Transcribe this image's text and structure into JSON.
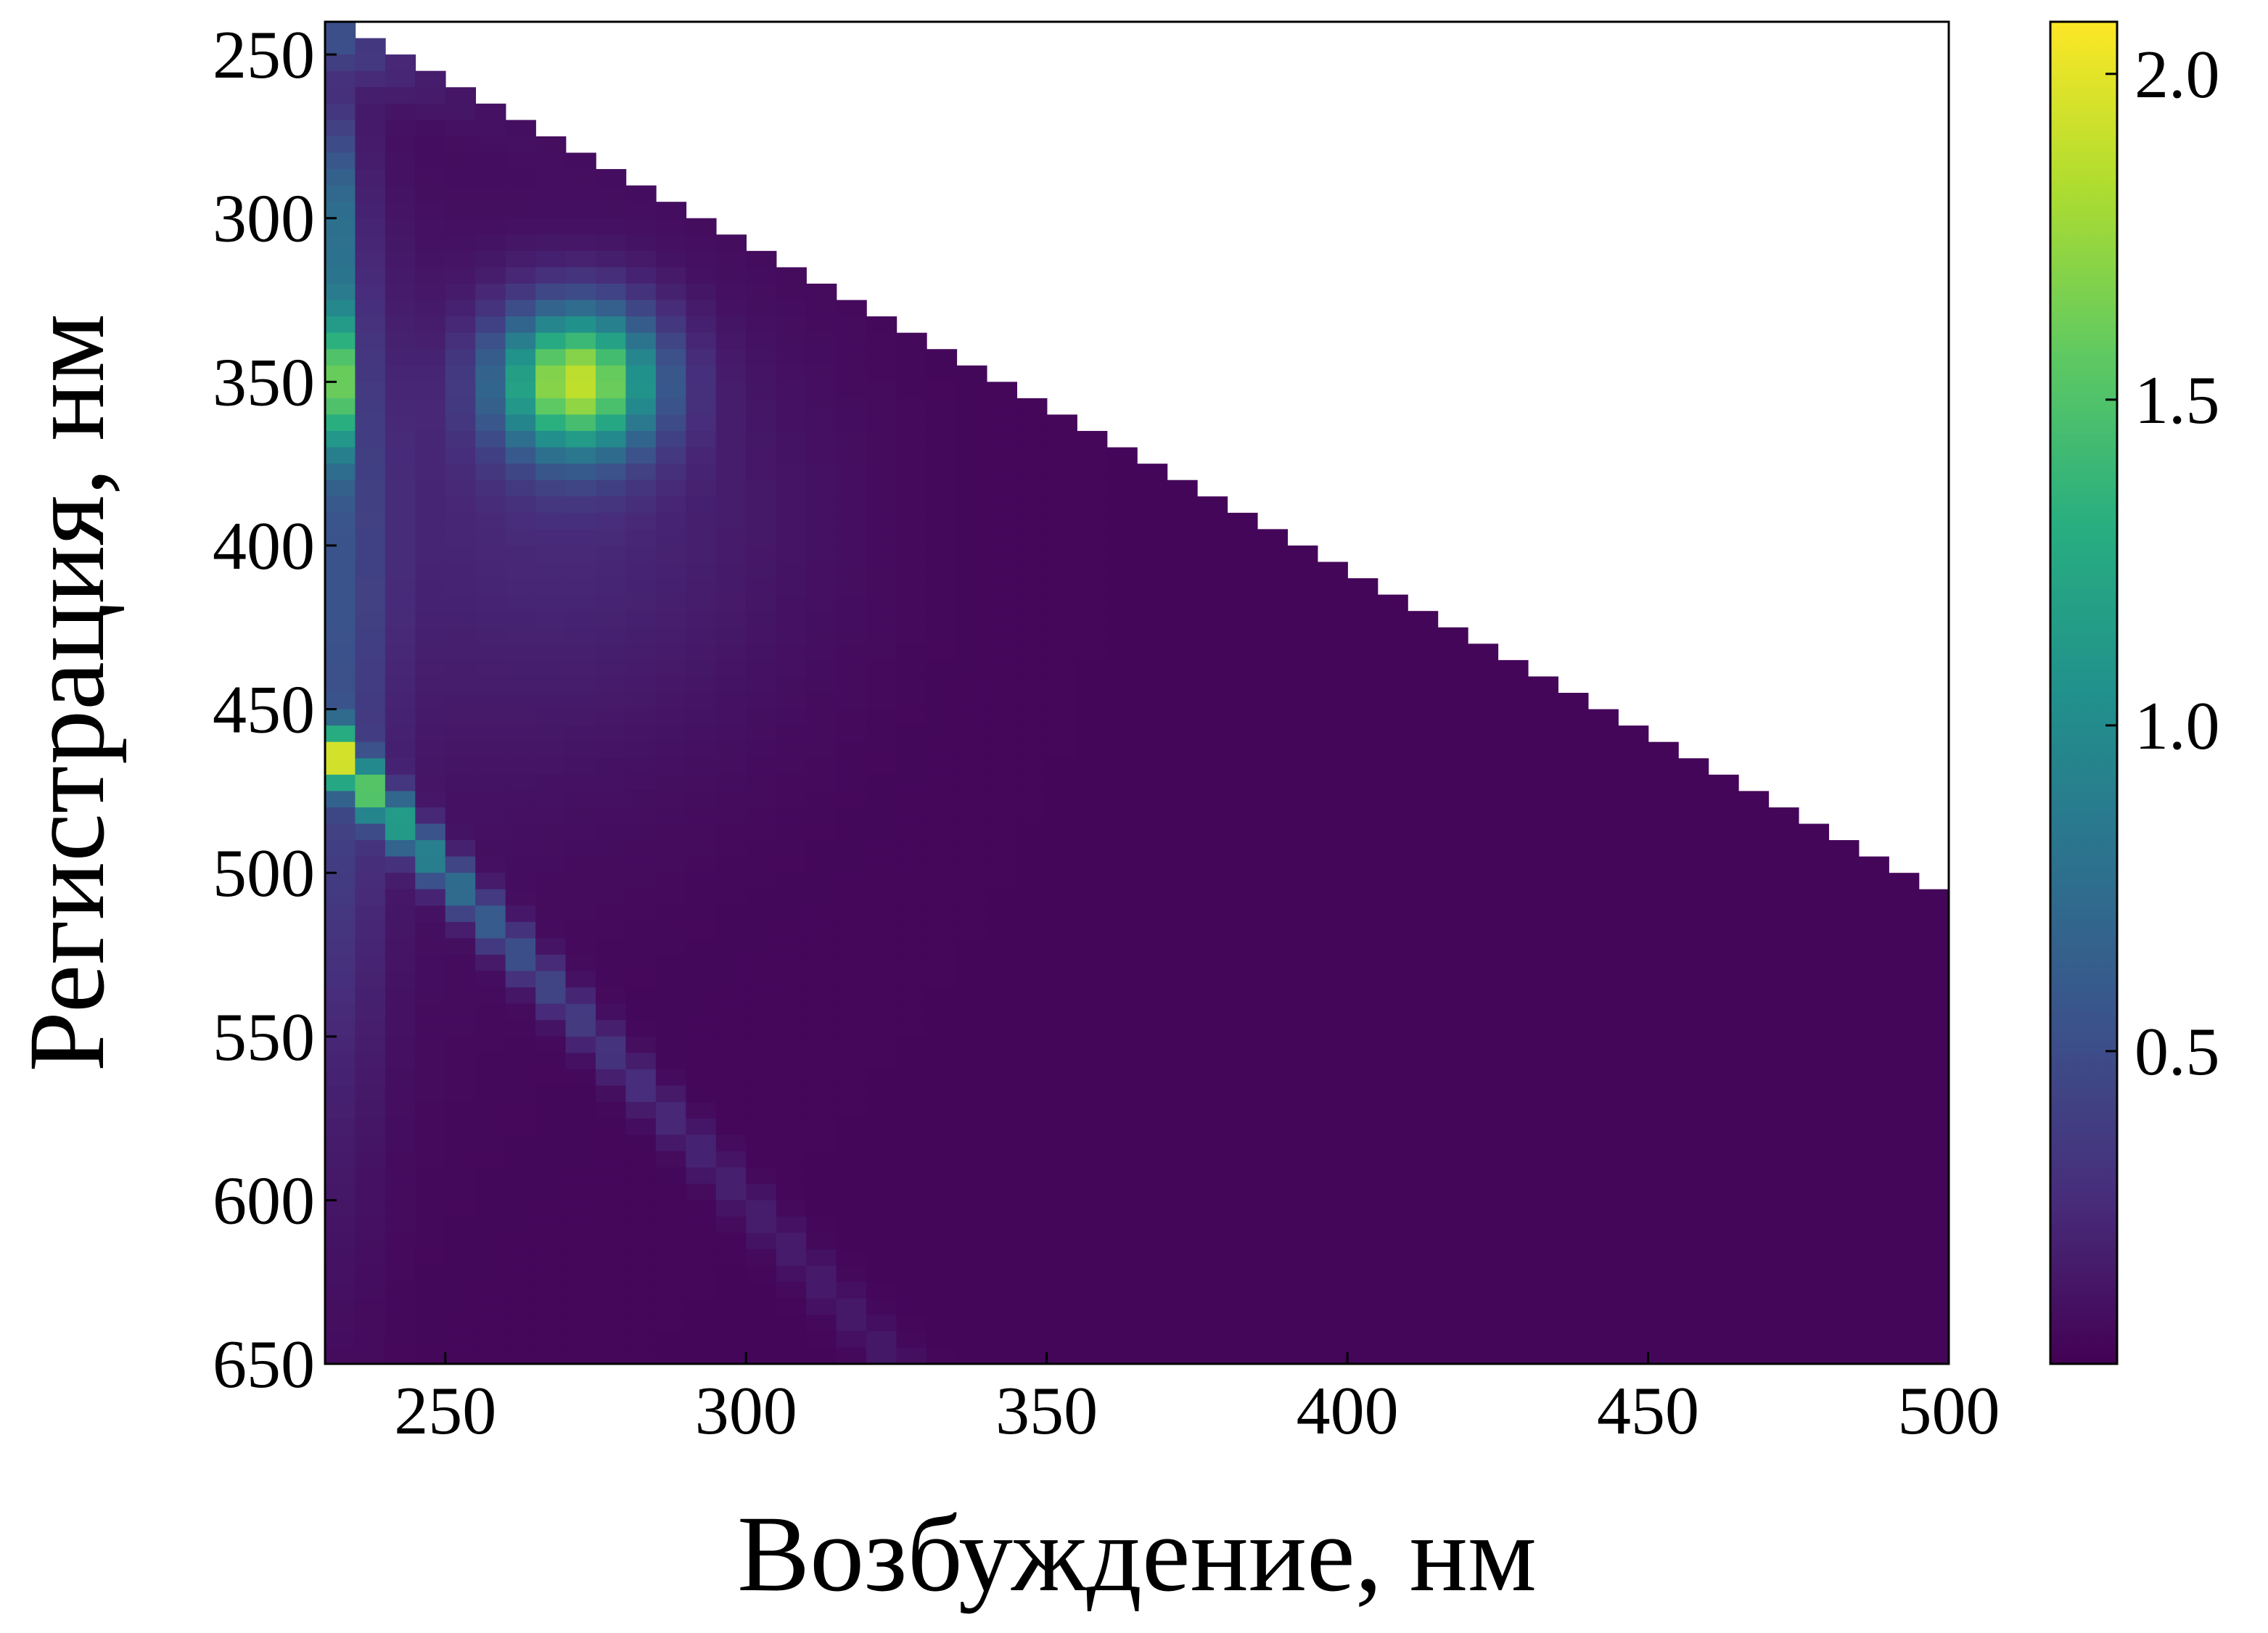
{
  "chart_data": {
    "type": "heatmap",
    "title": "",
    "xlabel": "Возбуждение, нм",
    "ylabel": "Регистрация, нм",
    "xlim": [
      230,
      500
    ],
    "ylim": [
      650,
      240
    ],
    "x_ticks": [
      "250",
      "300",
      "350",
      "400",
      "450",
      "500"
    ],
    "y_ticks": [
      "250",
      "300",
      "350",
      "400",
      "450",
      "500",
      "550",
      "600",
      "650"
    ],
    "excitation_range_nm": [
      230,
      500
    ],
    "excitation_step_nm": 5,
    "emission_range_nm": [
      240,
      650
    ],
    "emission_step_nm": 5,
    "masked_region": "emission below excitation + 10 nm (white, no data)",
    "colormap": "viridis",
    "colorbar": {
      "vmin": 0.02,
      "vmax": 2.08,
      "ticks": [
        "0.5",
        "1.0",
        "1.5",
        "2.0"
      ]
    },
    "features": [
      {
        "name": "main peak",
        "excitation_nm": 272,
        "emission_nm": 350,
        "intensity": 1.75
      },
      {
        "name": "edge band",
        "excitation_nm": 230,
        "emission_nm": 350,
        "intensity": 2.05
      },
      {
        "name": "second-order scatter",
        "along": "emission ≈ 2 × excitation",
        "intensity_near_start": 1.35
      }
    ]
  }
}
